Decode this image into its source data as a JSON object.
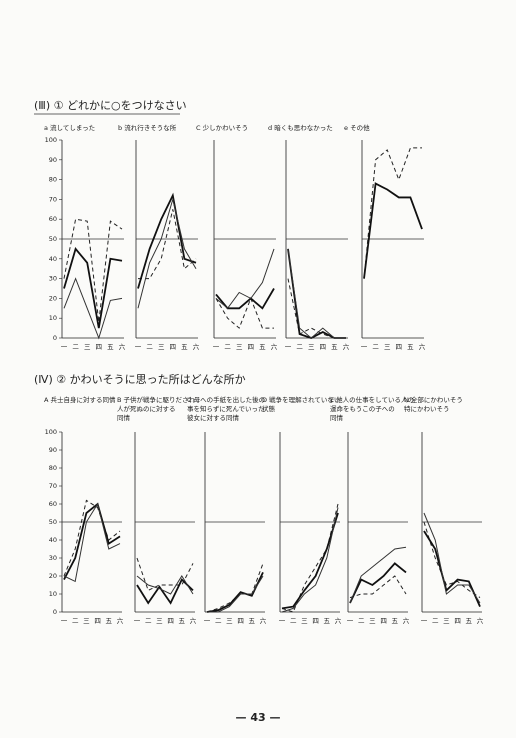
{
  "headings": [
    "(Ⅲ) ① どれかに○をつけなさい",
    "(Ⅳ) ② かわいそうに思った所はどんな所か"
  ],
  "page_number": "— 43 —",
  "chart_data": [
    {
      "type": "line",
      "title": [
        "a 流してしまった"
      ],
      "categories": [
        "一",
        "二",
        "三",
        "四",
        "五",
        "六"
      ],
      "ylim": [
        0,
        100
      ],
      "yticks": [
        0,
        10,
        20,
        30,
        40,
        50,
        60,
        70,
        80,
        90,
        100
      ],
      "hline": 50,
      "series": [
        {
          "color": "#222",
          "style": "dashed",
          "values": [
            30,
            60,
            59,
            8,
            59,
            55
          ]
        },
        {
          "color": "#111",
          "style": "thick",
          "values": [
            25,
            45,
            38,
            5,
            40,
            39
          ]
        },
        {
          "color": "#333",
          "style": "thin",
          "values": [
            15,
            30,
            15,
            0,
            19,
            20
          ]
        }
      ]
    },
    {
      "type": "line",
      "title": [
        "b 流れ行きそうな所"
      ],
      "categories": [
        "一",
        "二",
        "三",
        "四",
        "五",
        "六"
      ],
      "ylim": [
        0,
        100
      ],
      "hline": 50,
      "series": [
        {
          "color": "#222",
          "style": "dashed",
          "values": [
            30,
            30,
            40,
            65,
            35,
            40
          ]
        },
        {
          "color": "#111",
          "style": "thick",
          "values": [
            25,
            45,
            60,
            72,
            40,
            38
          ]
        },
        {
          "color": "#333",
          "style": "thin",
          "values": [
            15,
            38,
            50,
            70,
            45,
            35
          ]
        }
      ]
    },
    {
      "type": "line",
      "title": [
        "C 少しかわいそう"
      ],
      "categories": [
        "一",
        "二",
        "三",
        "四",
        "五",
        "六"
      ],
      "ylim": [
        0,
        100
      ],
      "hline": 50,
      "series": [
        {
          "color": "#222",
          "style": "dashed",
          "values": [
            20,
            10,
            5,
            20,
            5,
            5
          ]
        },
        {
          "color": "#111",
          "style": "thick",
          "values": [
            22,
            15,
            15,
            20,
            15,
            25
          ]
        },
        {
          "color": "#333",
          "style": "thin",
          "values": [
            20,
            15,
            23,
            20,
            28,
            45
          ]
        }
      ]
    },
    {
      "type": "line",
      "title": [
        "d 暗くも思わなかった"
      ],
      "categories": [
        "一",
        "二",
        "三",
        "四",
        "五",
        "六"
      ],
      "ylim": [
        0,
        100
      ],
      "hline": 50,
      "series": [
        {
          "color": "#222",
          "style": "dashed",
          "values": [
            30,
            2,
            5,
            2,
            0,
            0
          ]
        },
        {
          "color": "#111",
          "style": "thick",
          "values": [
            45,
            2,
            0,
            3,
            0,
            0
          ]
        },
        {
          "color": "#333",
          "style": "thin",
          "values": [
            45,
            5,
            0,
            5,
            0,
            0
          ]
        }
      ]
    },
    {
      "type": "line",
      "title": [
        "e その他"
      ],
      "categories": [
        "一",
        "二",
        "三",
        "四",
        "五",
        "六"
      ],
      "ylim": [
        0,
        100
      ],
      "hline": 50,
      "series": [
        {
          "color": "#222",
          "style": "dashed",
          "values": [
            30,
            90,
            95,
            80,
            96,
            96
          ]
        },
        {
          "color": "#111",
          "style": "thick",
          "values": [
            30,
            78,
            75,
            71,
            71,
            55
          ]
        }
      ]
    },
    {
      "type": "line",
      "title": [
        "A 兵士自身に対する同情"
      ],
      "categories": [
        "一",
        "二",
        "三",
        "四",
        "五",
        "六"
      ],
      "ylim": [
        0,
        100
      ],
      "yticks": [
        0,
        10,
        20,
        30,
        40,
        50,
        60,
        70,
        80,
        90,
        100
      ],
      "hline": 50,
      "series": [
        {
          "color": "#222",
          "style": "dashed",
          "values": [
            20,
            35,
            62,
            58,
            40,
            45
          ]
        },
        {
          "color": "#111",
          "style": "thick",
          "values": [
            18,
            30,
            55,
            60,
            38,
            42
          ]
        },
        {
          "color": "#333",
          "style": "thin",
          "values": [
            20,
            17,
            50,
            60,
            35,
            38
          ]
        }
      ]
    },
    {
      "type": "line",
      "title": [
        "B 子供が戦争に駆りだされ",
        "人が死ぬのに対する",
        "同情"
      ],
      "categories": [
        "一",
        "二",
        "三",
        "四",
        "五",
        "六"
      ],
      "ylim": [
        0,
        100
      ],
      "hline": 50,
      "series": [
        {
          "color": "#222",
          "style": "dashed",
          "values": [
            30,
            12,
            15,
            15,
            15,
            27
          ]
        },
        {
          "color": "#111",
          "style": "thick",
          "values": [
            15,
            5,
            14,
            5,
            18,
            12
          ]
        },
        {
          "color": "#333",
          "style": "thin",
          "values": [
            20,
            15,
            13,
            10,
            20,
            10
          ]
        }
      ]
    },
    {
      "type": "line",
      "title": [
        "C 母への手紙を出した後の",
        "事を知らずに死んでいった",
        "彼女に対する同情"
      ],
      "categories": [
        "一",
        "二",
        "三",
        "四",
        "五",
        "六"
      ],
      "ylim": [
        0,
        100
      ],
      "hline": 50,
      "series": [
        {
          "color": "#222",
          "style": "dashed",
          "values": [
            0,
            2,
            5,
            10,
            10,
            27
          ]
        },
        {
          "color": "#111",
          "style": "thick",
          "values": [
            0,
            1,
            4,
            11,
            9,
            22
          ]
        },
        {
          "color": "#333",
          "style": "thin",
          "values": [
            0,
            0,
            3,
            10,
            10,
            20
          ]
        }
      ]
    },
    {
      "type": "line",
      "title": [
        "D 戦争を理解されていない",
        "状態"
      ],
      "categories": [
        "一",
        "二",
        "三",
        "四",
        "五",
        "六"
      ],
      "ylim": [
        0,
        100
      ],
      "hline": 50,
      "series": [
        {
          "color": "#222",
          "style": "dashed",
          "values": [
            2,
            0,
            15,
            25,
            35,
            60
          ]
        },
        {
          "color": "#111",
          "style": "thick",
          "values": [
            2,
            3,
            12,
            20,
            35,
            55
          ]
        },
        {
          "color": "#333",
          "style": "thin",
          "values": [
            0,
            2,
            10,
            15,
            30,
            58
          ]
        }
      ]
    },
    {
      "type": "line",
      "title": [
        "E 他人の仕事をしている人の",
        "運命をもうこの子への",
        "同情"
      ],
      "categories": [
        "一",
        "二",
        "三",
        "四",
        "五",
        "六"
      ],
      "ylim": [
        0,
        100
      ],
      "hline": 50,
      "series": [
        {
          "color": "#222",
          "style": "dashed",
          "values": [
            8,
            10,
            10,
            15,
            20,
            10
          ]
        },
        {
          "color": "#111",
          "style": "thick",
          "values": [
            5,
            18,
            15,
            20,
            27,
            22
          ]
        },
        {
          "color": "#333",
          "style": "thin",
          "values": [
            5,
            20,
            25,
            30,
            35,
            36
          ]
        }
      ]
    },
    {
      "type": "line",
      "title": [
        "N 全部にかわいそう",
        "特にかわいそう"
      ],
      "categories": [
        "一",
        "二",
        "三",
        "四",
        "五",
        "六"
      ],
      "ylim": [
        0,
        100
      ],
      "hline": 50,
      "series": [
        {
          "color": "#222",
          "style": "dashed",
          "values": [
            50,
            30,
            15,
            17,
            12,
            8
          ]
        },
        {
          "color": "#111",
          "style": "thick",
          "values": [
            45,
            35,
            12,
            18,
            17,
            3
          ]
        },
        {
          "color": "#333",
          "style": "thin",
          "values": [
            55,
            40,
            10,
            15,
            15,
            5
          ]
        }
      ]
    }
  ]
}
